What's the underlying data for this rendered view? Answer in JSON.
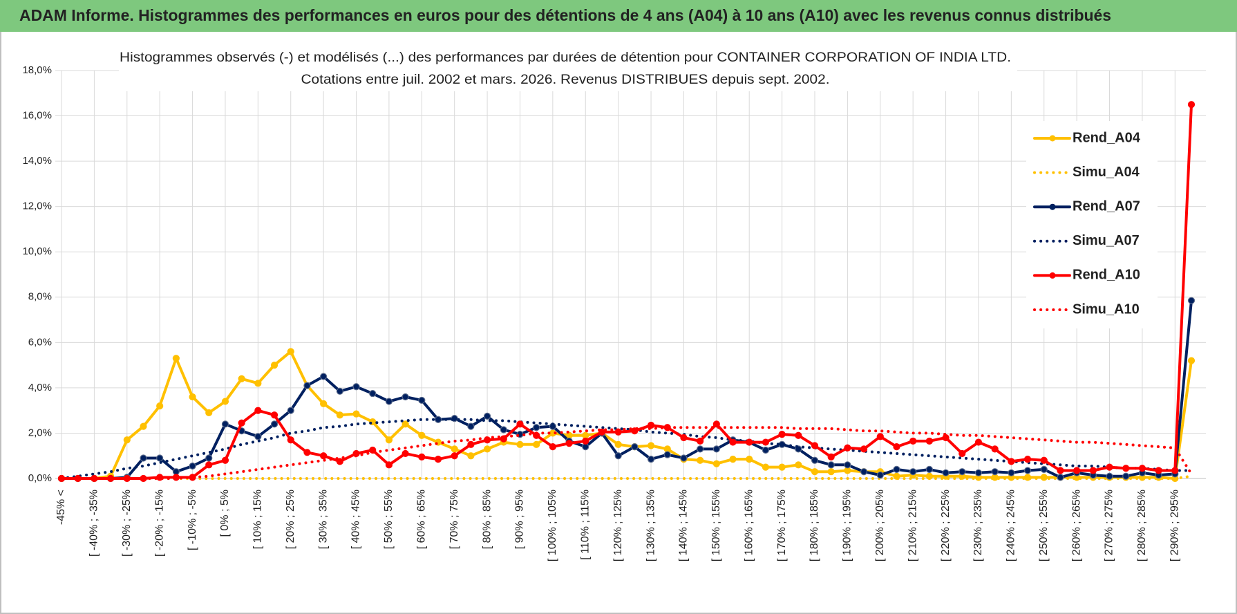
{
  "chart_data": {
    "type": "line",
    "header": "ADAM Informe. Histogrammes des performances en euros pour des détentions de 4 ans (A04) à 10 ans (A10) avec les revenus connus distribués",
    "title": "Histogrammes observés (-) et modélisés (...) des performances par durées de détention pour CONTAINER CORPORATION OF INDIA LTD.",
    "subtitle": "Cotations entre juil. 2002 et mars. 2026. Revenus DISTRIBUES depuis sept. 2002.",
    "categories": [
      "-45% <",
      null,
      "[ -40% ; -35%",
      null,
      "[ -30% ; -25%",
      null,
      "[ -20% ; -15%",
      null,
      "[ -10% ; -5%",
      null,
      "[ 0% ; 5%",
      null,
      "[ 10% ; 15%",
      null,
      "[ 20% ; 25%",
      null,
      "[ 30% ; 35%",
      null,
      "[ 40% ; 45%",
      null,
      "[ 50% ; 55%",
      null,
      "[ 60% ; 65%",
      null,
      "[ 70% ; 75%",
      null,
      "[ 80% ; 85%",
      null,
      "[ 90% ; 95%",
      null,
      "[ 100% ; 105%",
      null,
      "[ 110% ; 115%",
      null,
      "[ 120% ; 125%",
      null,
      "[ 130% ; 135%",
      null,
      "[ 140% ; 145%",
      null,
      "[ 150% ; 155%",
      null,
      "[ 160% ; 165%",
      null,
      "[ 170% ; 175%",
      null,
      "[ 180% ; 185%",
      null,
      "[ 190% ; 195%",
      null,
      "[ 200% ; 205%",
      null,
      "[ 210% ; 215%",
      null,
      "[ 220% ; 225%",
      null,
      "[ 230% ; 235%",
      null,
      "[ 240% ; 245%",
      null,
      "[ 250% ; 255%",
      null,
      "[ 260% ; 265%",
      null,
      "[ 270% ; 275%",
      null,
      "[ 280% ; 285%",
      null,
      "[ 290% ; 295%",
      null
    ],
    "series": [
      {
        "name": "Rend_A04",
        "color": "#ffc000",
        "line_style": "solid",
        "markers": true,
        "values": [
          0,
          0,
          0,
          0.1,
          1.7,
          2.3,
          3.2,
          5.3,
          3.6,
          2.9,
          3.4,
          4.4,
          4.2,
          5.0,
          5.6,
          4.1,
          3.3,
          2.8,
          2.85,
          2.5,
          1.7,
          2.4,
          1.9,
          1.6,
          1.3,
          1.0,
          1.3,
          1.6,
          1.5,
          1.5,
          2.0,
          1.9,
          1.9,
          2.0,
          1.5,
          1.4,
          1.45,
          1.3,
          0.85,
          0.8,
          0.65,
          0.85,
          0.85,
          0.5,
          0.5,
          0.6,
          0.3,
          0.3,
          0.35,
          0.3,
          0.3,
          0.1,
          0.15,
          0.1,
          0.1,
          0.1,
          0.05,
          0.05,
          0.05,
          0.05,
          0.05,
          0.05,
          0.05,
          0.05,
          0.05,
          0.05,
          0.05,
          0.05,
          0,
          5.2
        ]
      },
      {
        "name": "Simu_A04",
        "color": "#ffc000",
        "line_style": "dotted",
        "markers": false,
        "values": [
          0,
          0,
          0,
          0,
          0,
          0,
          0,
          0,
          0,
          0,
          0,
          0,
          0,
          0,
          0,
          0,
          0,
          0,
          0,
          0,
          0,
          0,
          0,
          0,
          0,
          0,
          0,
          0,
          0,
          0,
          0,
          0,
          0,
          0,
          0,
          0,
          0,
          0,
          0,
          0,
          0,
          0,
          0,
          0,
          0,
          0,
          0,
          0,
          0,
          0,
          0,
          0,
          0,
          0,
          0,
          0,
          0,
          0,
          0,
          0,
          0,
          0,
          0,
          0,
          0,
          0,
          0,
          0,
          0,
          0.1
        ]
      },
      {
        "name": "Rend_A07",
        "color": "#002060",
        "line_style": "solid",
        "markers": true,
        "values": [
          0,
          0,
          0,
          0,
          0.05,
          0.9,
          0.9,
          0.3,
          0.55,
          0.9,
          2.4,
          2.1,
          1.85,
          2.4,
          3.0,
          4.1,
          4.5,
          3.85,
          4.05,
          3.75,
          3.4,
          3.6,
          3.45,
          2.6,
          2.65,
          2.3,
          2.75,
          2.15,
          1.95,
          2.25,
          2.3,
          1.65,
          1.4,
          2.0,
          1.0,
          1.4,
          0.85,
          1.05,
          0.9,
          1.3,
          1.3,
          1.7,
          1.6,
          1.25,
          1.5,
          1.3,
          0.8,
          0.6,
          0.6,
          0.3,
          0.15,
          0.4,
          0.3,
          0.4,
          0.25,
          0.3,
          0.25,
          0.3,
          0.25,
          0.35,
          0.4,
          0.05,
          0.25,
          0.15,
          0.1,
          0.1,
          0.25,
          0.15,
          0.2,
          7.85
        ]
      },
      {
        "name": "Simu_A07",
        "color": "#002060",
        "line_style": "dotted",
        "markers": false,
        "values": [
          0,
          0.1,
          0.2,
          0.3,
          0.45,
          0.55,
          0.7,
          0.85,
          1.0,
          1.15,
          1.3,
          1.5,
          1.65,
          1.8,
          2.0,
          2.1,
          2.25,
          2.3,
          2.4,
          2.45,
          2.5,
          2.55,
          2.6,
          2.6,
          2.6,
          2.6,
          2.55,
          2.55,
          2.5,
          2.45,
          2.4,
          2.35,
          2.3,
          2.25,
          2.2,
          2.15,
          2.05,
          2.0,
          1.95,
          1.85,
          1.8,
          1.7,
          1.65,
          1.55,
          1.5,
          1.4,
          1.35,
          1.3,
          1.25,
          1.2,
          1.15,
          1.1,
          1.05,
          1.0,
          0.95,
          0.9,
          0.85,
          0.8,
          0.75,
          0.7,
          0.65,
          0.6,
          0.55,
          0.55,
          0.5,
          0.45,
          0.45,
          0.4,
          0.35,
          0.35
        ]
      },
      {
        "name": "Rend_A10",
        "color": "#ff0000",
        "line_style": "solid",
        "markers": true,
        "values": [
          0,
          0,
          0,
          0,
          0,
          0,
          0.05,
          0.05,
          0.05,
          0.6,
          0.8,
          2.45,
          3.0,
          2.8,
          1.7,
          1.15,
          1.0,
          0.75,
          1.1,
          1.25,
          0.6,
          1.1,
          0.95,
          0.85,
          1.0,
          1.5,
          1.7,
          1.75,
          2.4,
          1.9,
          1.4,
          1.55,
          1.65,
          2.05,
          2.05,
          2.1,
          2.35,
          2.25,
          1.8,
          1.65,
          2.4,
          1.6,
          1.6,
          1.6,
          1.95,
          1.9,
          1.45,
          0.95,
          1.35,
          1.3,
          1.85,
          1.4,
          1.65,
          1.65,
          1.8,
          1.1,
          1.6,
          1.3,
          0.75,
          0.85,
          0.8,
          0.35,
          0.35,
          0.35,
          0.5,
          0.45,
          0.45,
          0.35,
          0.35,
          16.5
        ]
      },
      {
        "name": "Simu_A10",
        "color": "#ff0000",
        "line_style": "dotted",
        "markers": false,
        "values": [
          0,
          0,
          0,
          0,
          0,
          0,
          0,
          0,
          0.05,
          0.1,
          0.2,
          0.3,
          0.4,
          0.5,
          0.6,
          0.7,
          0.8,
          0.9,
          1.0,
          1.15,
          1.25,
          1.35,
          1.45,
          1.55,
          1.65,
          1.7,
          1.8,
          1.85,
          1.9,
          2.0,
          2.0,
          2.05,
          2.1,
          2.15,
          2.15,
          2.2,
          2.2,
          2.25,
          2.25,
          2.25,
          2.25,
          2.25,
          2.25,
          2.25,
          2.25,
          2.2,
          2.2,
          2.2,
          2.15,
          2.1,
          2.1,
          2.05,
          2.0,
          2.0,
          1.95,
          1.9,
          1.9,
          1.85,
          1.8,
          1.75,
          1.7,
          1.65,
          1.6,
          1.6,
          1.55,
          1.5,
          1.45,
          1.4,
          1.35,
          0.2
        ]
      }
    ],
    "ylim": [
      0,
      18
    ],
    "yticks": [
      {
        "value": 0,
        "label": "0,0%"
      },
      {
        "value": 2,
        "label": "2,0%"
      },
      {
        "value": 4,
        "label": "4,0%"
      },
      {
        "value": 6,
        "label": "6,0%"
      },
      {
        "value": 8,
        "label": "8,0%"
      },
      {
        "value": 10,
        "label": "10,0%"
      },
      {
        "value": 12,
        "label": "12,0%"
      },
      {
        "value": 14,
        "label": "14,0%"
      },
      {
        "value": 16,
        "label": "16,0%"
      },
      {
        "value": 18,
        "label": "18,0%"
      }
    ],
    "grid": true,
    "legend": "upper right"
  }
}
